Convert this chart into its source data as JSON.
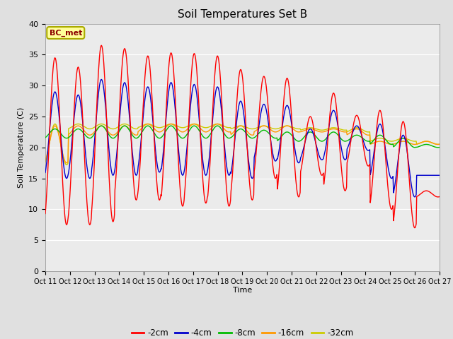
{
  "title": "Soil Temperatures Set B",
  "xlabel": "Time",
  "ylabel": "Soil Temperature (C)",
  "ylim": [
    0,
    40
  ],
  "yticks": [
    0,
    5,
    10,
    15,
    20,
    25,
    30,
    35,
    40
  ],
  "annotation": "BC_met",
  "series_labels": [
    "-2cm",
    "-4cm",
    "-8cm",
    "-16cm",
    "-32cm"
  ],
  "series_colors": [
    "#ff0000",
    "#0000cc",
    "#00bb00",
    "#ff9900",
    "#cccc00"
  ],
  "background_color": "#e0e0e0",
  "plot_bg_color": "#ebebeb",
  "num_points_per_day": 48,
  "num_days": 17,
  "depth_2cm": {
    "day_max": [
      34.5,
      33.0,
      36.5,
      36.0,
      34.8,
      35.3,
      35.2,
      34.8,
      32.6,
      31.5,
      31.2,
      25.0,
      28.8,
      25.2,
      26.0,
      24.2,
      13.0
    ],
    "day_min": [
      7.5,
      7.5,
      8.0,
      11.5,
      11.5,
      10.5,
      11.0,
      10.5,
      11.5,
      15.0,
      12.0,
      15.5,
      13.0,
      17.0,
      10.0,
      7.0,
      12.0
    ]
  },
  "depth_4cm": {
    "day_max": [
      29.0,
      28.5,
      31.0,
      30.5,
      29.8,
      30.5,
      30.2,
      29.8,
      27.5,
      27.0,
      26.8,
      23.0,
      26.0,
      23.5,
      23.8,
      22.0,
      15.5
    ],
    "day_min": [
      15.0,
      15.0,
      15.5,
      15.5,
      16.0,
      15.5,
      15.5,
      15.5,
      15.0,
      17.8,
      17.5,
      18.0,
      18.0,
      19.5,
      15.0,
      12.0,
      15.5
    ]
  },
  "depth_8cm": {
    "day_max": [
      23.0,
      23.0,
      23.5,
      23.5,
      23.5,
      23.5,
      23.5,
      23.5,
      23.0,
      22.8,
      22.5,
      22.5,
      22.5,
      22.0,
      22.0,
      21.5,
      20.5
    ],
    "day_min": [
      21.5,
      21.5,
      21.5,
      21.5,
      21.5,
      21.5,
      21.5,
      21.5,
      21.5,
      21.5,
      21.0,
      21.0,
      21.0,
      21.0,
      20.5,
      20.0,
      20.0
    ]
  },
  "depth_16cm": {
    "day_max": [
      23.5,
      23.5,
      23.5,
      23.5,
      23.8,
      23.8,
      23.8,
      23.8,
      23.5,
      23.5,
      23.5,
      23.0,
      23.0,
      23.0,
      21.0,
      21.0,
      21.0
    ],
    "day_min": [
      17.5,
      22.0,
      22.0,
      22.0,
      22.5,
      22.5,
      22.5,
      22.5,
      22.0,
      22.5,
      22.5,
      22.5,
      22.5,
      22.0,
      20.5,
      20.5,
      20.5
    ]
  },
  "depth_32cm": {
    "day_max": [
      23.8,
      23.8,
      23.8,
      23.8,
      23.8,
      23.8,
      23.8,
      23.8,
      23.5,
      23.5,
      23.5,
      23.2,
      23.2,
      23.2,
      21.5,
      21.5,
      21.0
    ],
    "day_min": [
      17.2,
      23.0,
      23.0,
      23.0,
      23.2,
      23.2,
      23.2,
      23.2,
      23.0,
      23.0,
      23.0,
      22.8,
      22.8,
      22.5,
      21.0,
      21.0,
      20.5
    ]
  },
  "x_tick_labels": [
    "Oct 11",
    "Oct 12",
    "Oct 13",
    "Oct 14",
    "Oct 15",
    "Oct 16",
    "Oct 17",
    "Oct 18",
    "Oct 19",
    "Oct 20",
    "Oct 21",
    "Oct 22",
    "Oct 23",
    "Oct 24",
    "Oct 25",
    "Oct 26",
    "Oct 27"
  ]
}
